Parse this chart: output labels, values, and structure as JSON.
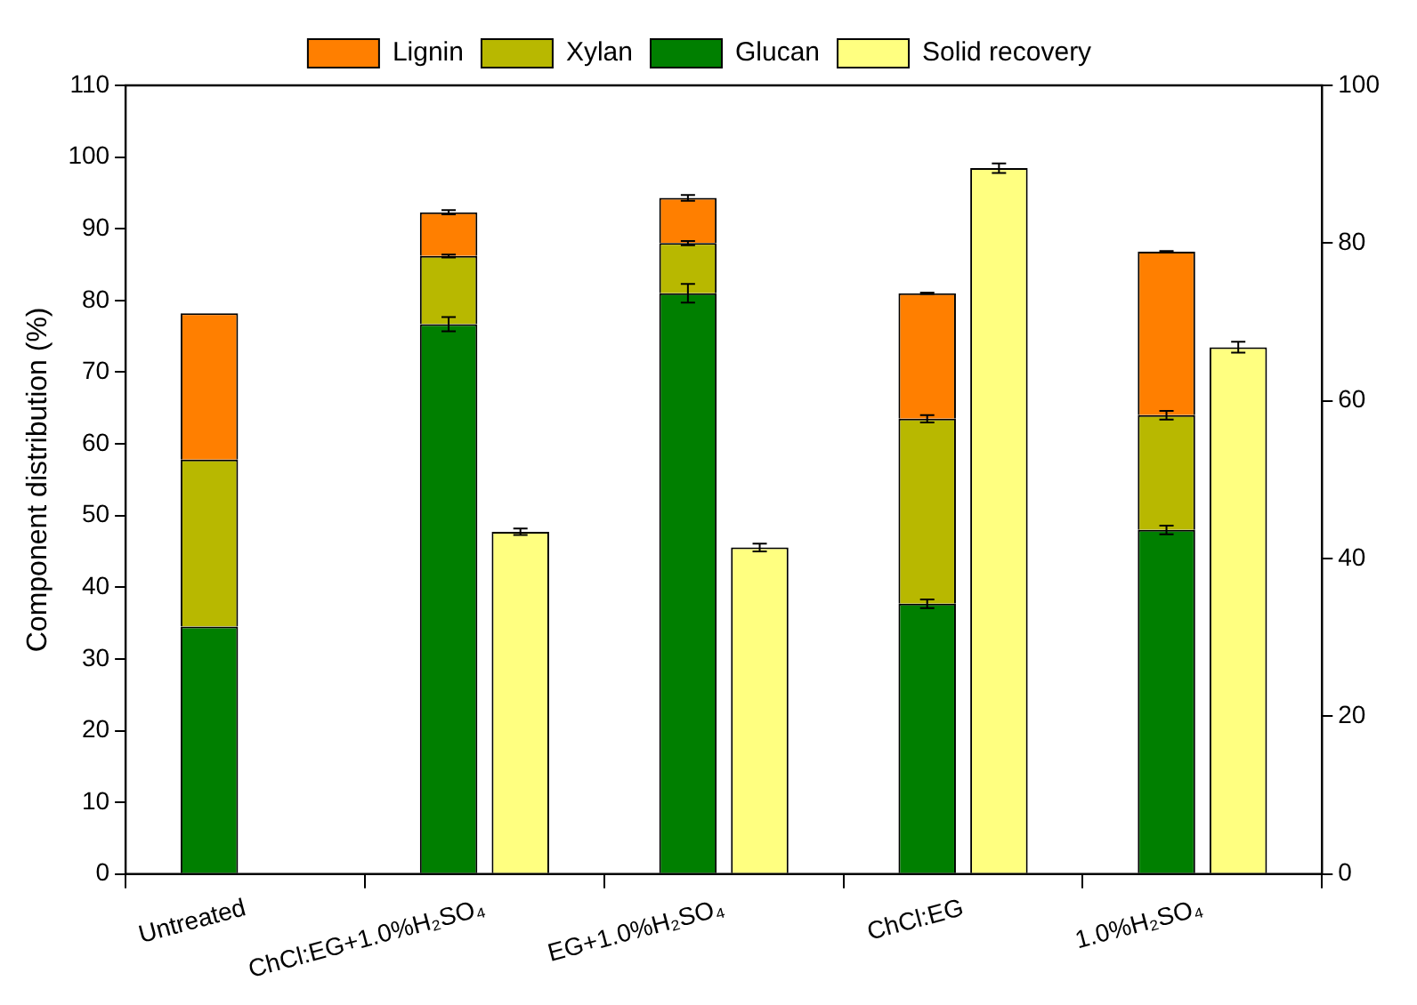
{
  "chart_data": {
    "type": "bar",
    "stacked": true,
    "ylabel": "Component distribution (%)",
    "categories": [
      "Untreated",
      "ChCl:EG+1.0%H₂SO₄",
      "EG+1.0%H₂SO₄",
      "ChCl:EG",
      "1.0%H₂SO₄"
    ],
    "series": [
      {
        "name": "Glucan",
        "color": "#007f00",
        "values": [
          34.5,
          76.7,
          81.0,
          37.7,
          48.0
        ],
        "errors": [
          null,
          1.0,
          1.3,
          0.6,
          0.6
        ]
      },
      {
        "name": "Xylan",
        "color": "#b8b800",
        "values": [
          23.3,
          9.5,
          7.0,
          25.8,
          16.0
        ],
        "errors": [
          null,
          0.2,
          0.3,
          0.5,
          0.6
        ]
      },
      {
        "name": "Lignin",
        "color": "#ff7f00",
        "values": [
          20.4,
          6.1,
          6.3,
          17.5,
          22.8
        ],
        "errors": [
          null,
          0.3,
          0.4,
          0.1,
          0.1
        ]
      },
      {
        "name": "Solid recovery",
        "color": "#ffff80",
        "axis": "y2",
        "values": [
          null,
          43.4,
          41.4,
          89.5,
          66.8
        ],
        "errors": [
          null,
          0.4,
          0.5,
          0.6,
          0.7
        ]
      }
    ],
    "ylim": [
      0,
      110
    ],
    "yticks": [
      0,
      10,
      20,
      30,
      40,
      50,
      60,
      70,
      80,
      90,
      100,
      110
    ],
    "y2lim": [
      0,
      100
    ],
    "y2ticks": [
      0,
      20,
      40,
      60,
      80,
      100
    ],
    "grid": false,
    "legend": "top"
  }
}
